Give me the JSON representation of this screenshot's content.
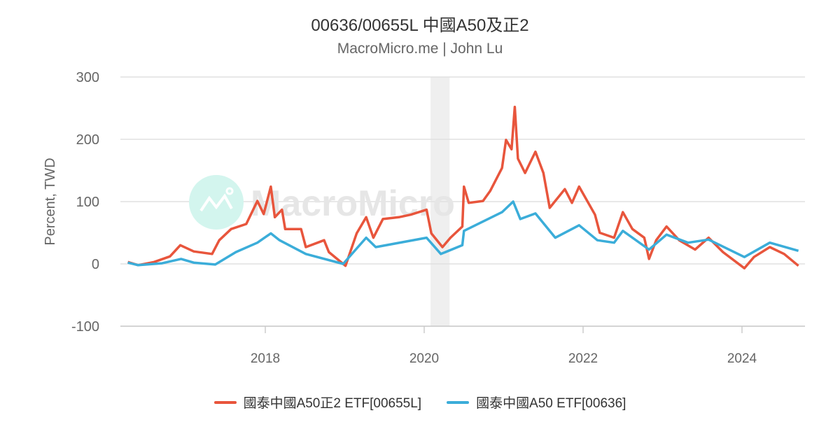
{
  "chart_data": {
    "type": "line",
    "title": "00636/00655L 中國A50及正2",
    "subtitle": "MacroMicro.me | John Lu",
    "ylabel": "Percent, TWD",
    "xlabel": "",
    "ylim": [
      -100,
      300
    ],
    "xlim": [
      2016.1,
      2024.8
    ],
    "yticks": [
      -100,
      0,
      100,
      200,
      300
    ],
    "xticks": [
      2018,
      2020,
      2022,
      2024
    ],
    "grid": true,
    "legend_position": "bottom",
    "shaded_region": [
      2020.08,
      2020.32
    ],
    "watermark": "MacroMicro",
    "series": [
      {
        "name": "國泰中國A50正2 ETF[00655L]",
        "color": "#e8553c",
        "points": [
          [
            2016.27,
            3
          ],
          [
            2016.4,
            -2
          ],
          [
            2016.6,
            3
          ],
          [
            2016.8,
            12
          ],
          [
            2016.93,
            30
          ],
          [
            2017.1,
            20
          ],
          [
            2017.33,
            16
          ],
          [
            2017.42,
            38
          ],
          [
            2017.57,
            56
          ],
          [
            2017.76,
            64
          ],
          [
            2017.9,
            101
          ],
          [
            2017.98,
            80
          ],
          [
            2018.07,
            124
          ],
          [
            2018.12,
            75
          ],
          [
            2018.21,
            87
          ],
          [
            2018.25,
            56
          ],
          [
            2018.45,
            56
          ],
          [
            2018.51,
            27
          ],
          [
            2018.74,
            38
          ],
          [
            2018.8,
            19
          ],
          [
            2018.98,
            0
          ],
          [
            2019.01,
            -3
          ],
          [
            2019.15,
            49
          ],
          [
            2019.27,
            75
          ],
          [
            2019.36,
            42
          ],
          [
            2019.48,
            72
          ],
          [
            2019.68,
            75
          ],
          [
            2019.83,
            79
          ],
          [
            2020.03,
            87
          ],
          [
            2020.09,
            49
          ],
          [
            2020.23,
            27
          ],
          [
            2020.33,
            42
          ],
          [
            2020.48,
            60
          ],
          [
            2020.5,
            124
          ],
          [
            2020.56,
            98
          ],
          [
            2020.74,
            101
          ],
          [
            2020.83,
            117
          ],
          [
            2020.98,
            154
          ],
          [
            2021.03,
            199
          ],
          [
            2021.1,
            184
          ],
          [
            2021.14,
            252
          ],
          [
            2021.18,
            169
          ],
          [
            2021.27,
            146
          ],
          [
            2021.4,
            180
          ],
          [
            2021.5,
            146
          ],
          [
            2021.58,
            90
          ],
          [
            2021.77,
            120
          ],
          [
            2021.86,
            98
          ],
          [
            2021.95,
            124
          ],
          [
            2022.15,
            79
          ],
          [
            2022.21,
            50
          ],
          [
            2022.39,
            42
          ],
          [
            2022.5,
            83
          ],
          [
            2022.62,
            56
          ],
          [
            2022.77,
            42
          ],
          [
            2022.83,
            8
          ],
          [
            2022.92,
            38
          ],
          [
            2023.05,
            60
          ],
          [
            2023.21,
            38
          ],
          [
            2023.41,
            23
          ],
          [
            2023.58,
            42
          ],
          [
            2023.76,
            19
          ],
          [
            2024.03,
            -7
          ],
          [
            2024.15,
            11
          ],
          [
            2024.35,
            27
          ],
          [
            2024.53,
            16
          ],
          [
            2024.71,
            -3
          ]
        ]
      },
      {
        "name": "國泰中國A50 ETF[00636]",
        "color": "#3badd9",
        "points": [
          [
            2016.27,
            2
          ],
          [
            2016.4,
            -2
          ],
          [
            2016.7,
            1
          ],
          [
            2016.94,
            8
          ],
          [
            2017.1,
            2
          ],
          [
            2017.37,
            -1
          ],
          [
            2017.63,
            19
          ],
          [
            2017.9,
            34
          ],
          [
            2018.07,
            49
          ],
          [
            2018.18,
            38
          ],
          [
            2018.51,
            16
          ],
          [
            2018.98,
            0
          ],
          [
            2019.27,
            42
          ],
          [
            2019.39,
            27
          ],
          [
            2020.03,
            42
          ],
          [
            2020.21,
            16
          ],
          [
            2020.48,
            30
          ],
          [
            2020.5,
            53
          ],
          [
            2020.98,
            83
          ],
          [
            2021.12,
            100
          ],
          [
            2021.21,
            72
          ],
          [
            2021.4,
            81
          ],
          [
            2021.65,
            42
          ],
          [
            2021.95,
            62
          ],
          [
            2022.18,
            38
          ],
          [
            2022.39,
            34
          ],
          [
            2022.5,
            53
          ],
          [
            2022.83,
            23
          ],
          [
            2023.05,
            47
          ],
          [
            2023.32,
            34
          ],
          [
            2023.58,
            39
          ],
          [
            2024.03,
            11
          ],
          [
            2024.35,
            34
          ],
          [
            2024.71,
            21
          ]
        ]
      }
    ]
  }
}
